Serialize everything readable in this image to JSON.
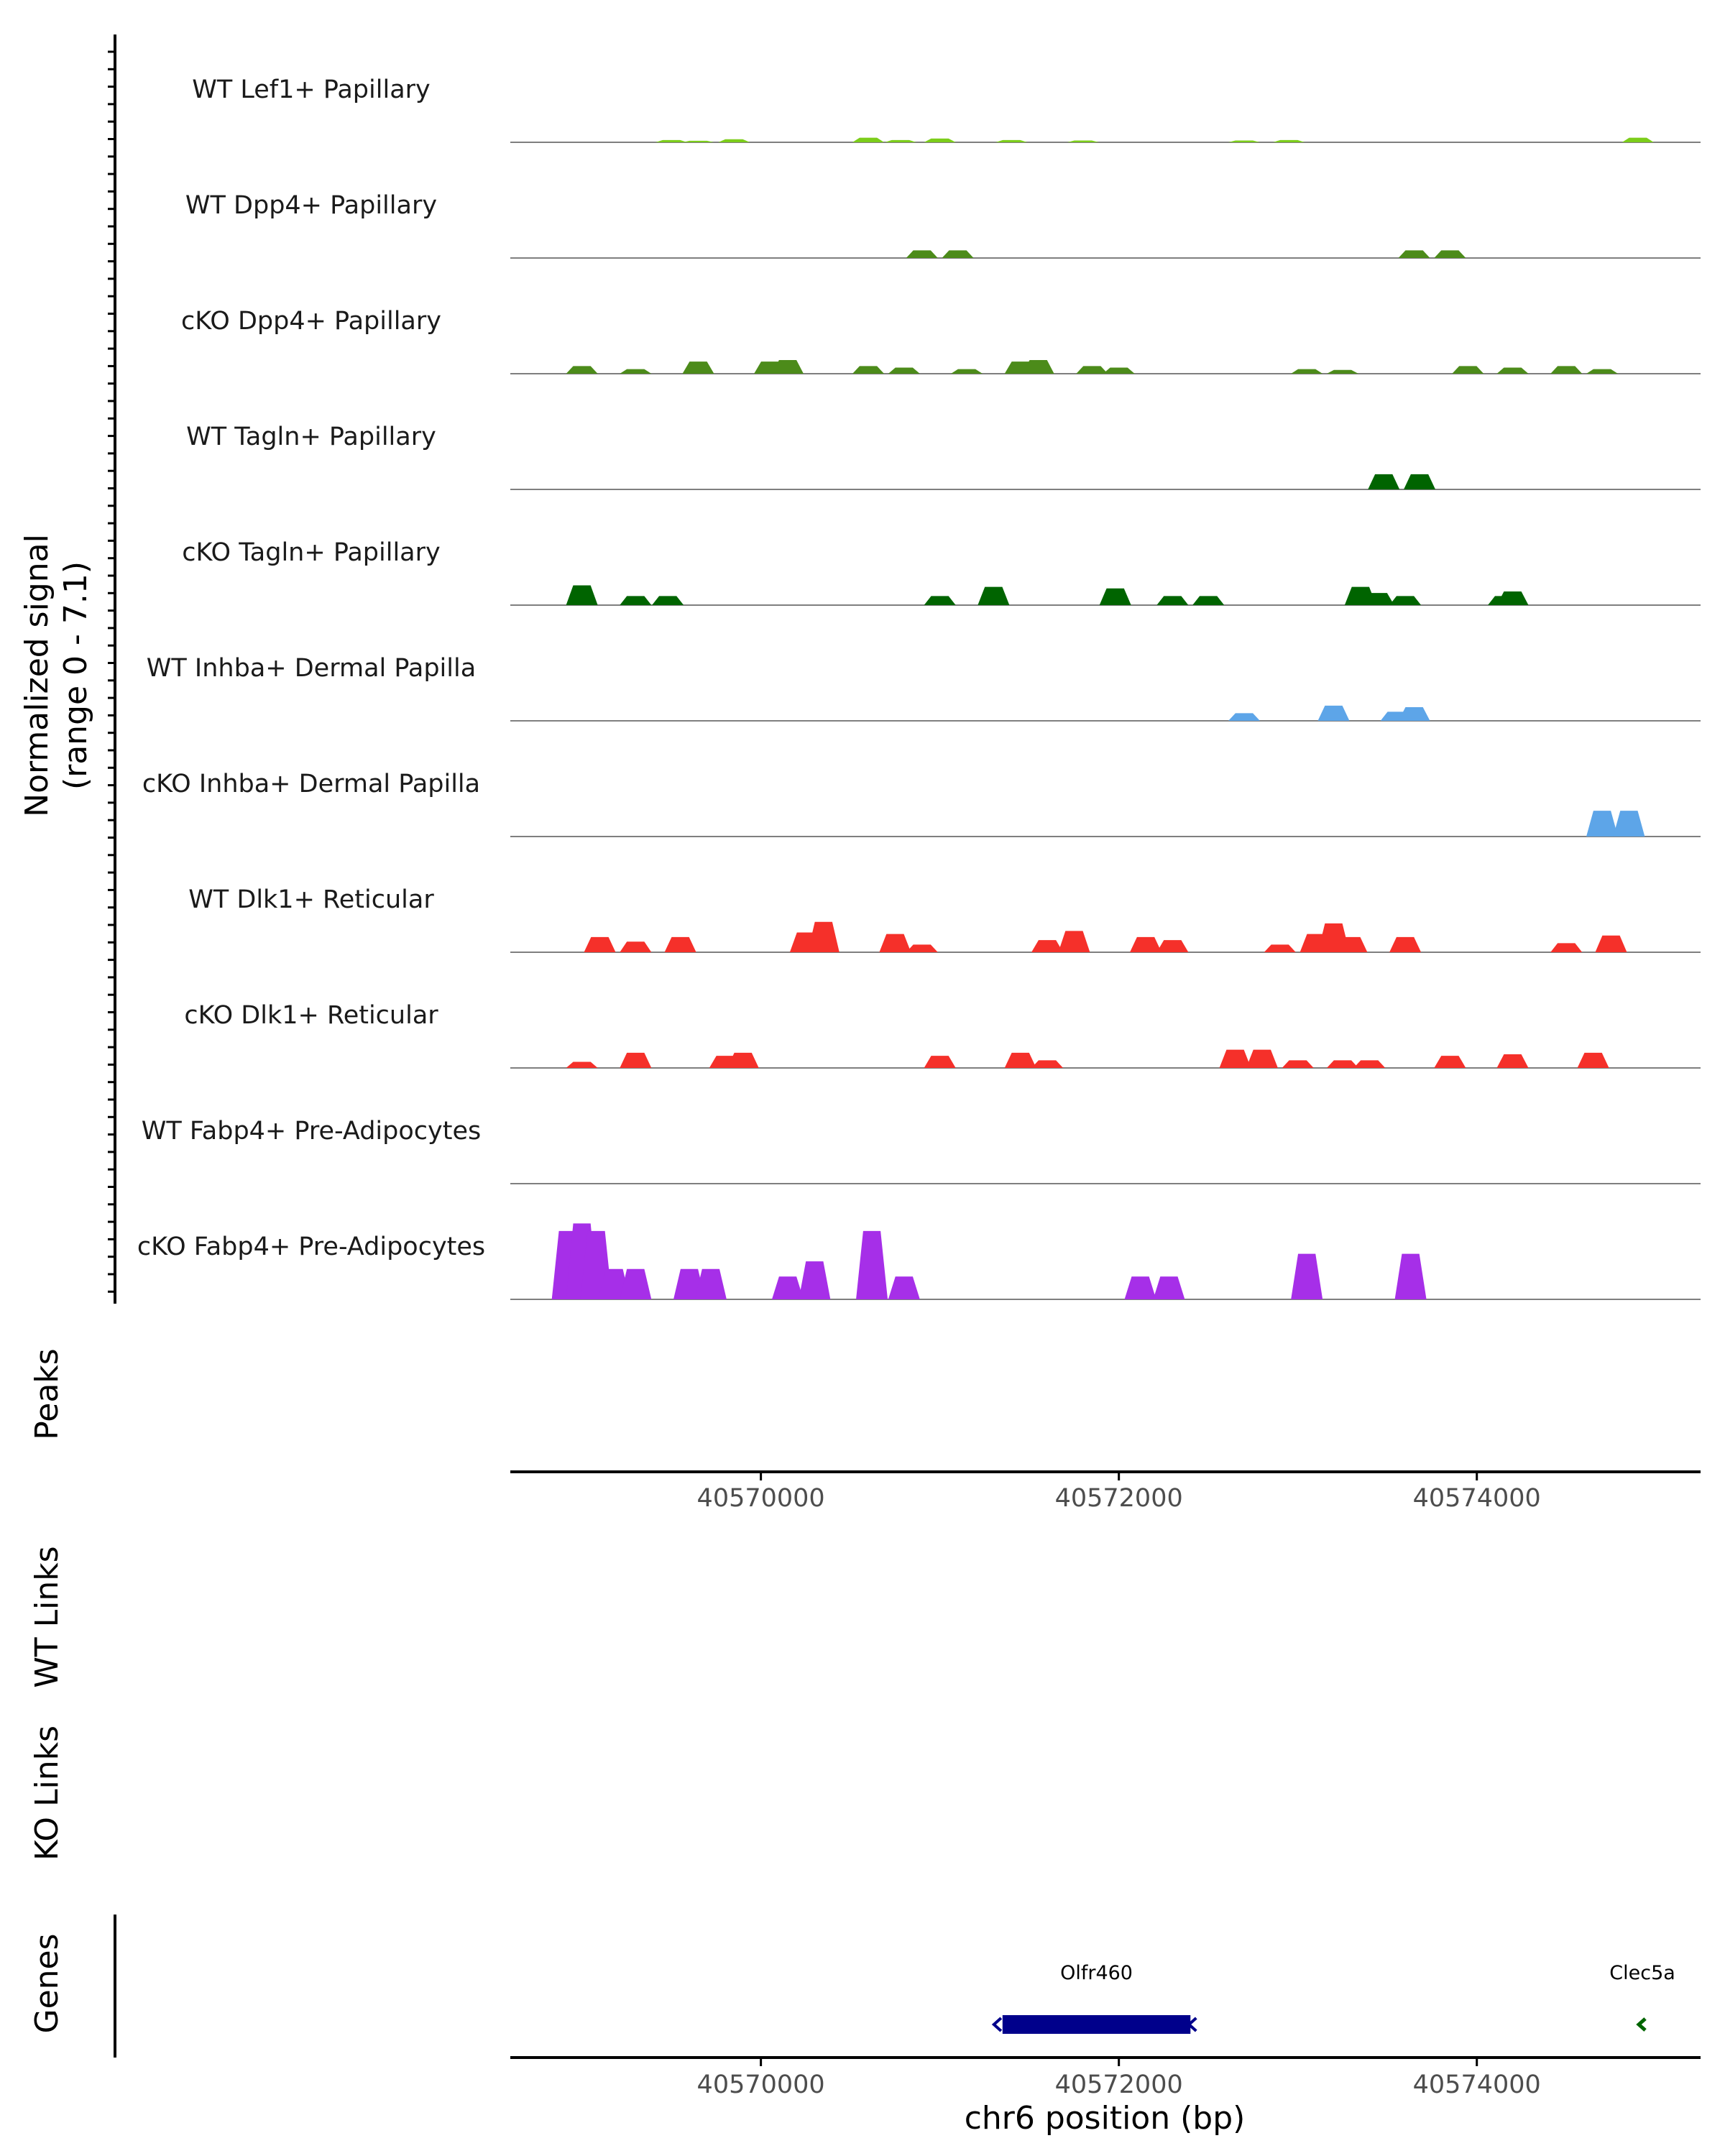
{
  "chart_data": {
    "type": "area",
    "title": "",
    "xlabel": "chr6 position (bp)",
    "region": {
      "chrom": "chr6",
      "start": 40568600,
      "end": 40575250
    },
    "x_ticks": [
      40570000,
      40572000,
      40574000
    ],
    "x_tick_labels": [
      "40570000",
      "40572000",
      "40574000"
    ],
    "coverage": {
      "ylabel_line1": "Normalized signal",
      "ylabel_line2": "(range 0 - 7.1)",
      "ylim": [
        0,
        7.1
      ],
      "tracks": [
        {
          "name": "WT Lef1+ Papillary",
          "color": "#7CCD1A",
          "peaks": [
            [
              40569500,
              0.15
            ],
            [
              40569650,
              0.1
            ],
            [
              40569850,
              0.2
            ],
            [
              40570600,
              0.3
            ],
            [
              40570780,
              0.15
            ],
            [
              40571000,
              0.25
            ],
            [
              40571400,
              0.15
            ],
            [
              40571800,
              0.12
            ],
            [
              40572700,
              0.12
            ],
            [
              40572950,
              0.15
            ],
            [
              40574900,
              0.3
            ]
          ]
        },
        {
          "name": "WT Dpp4+ Papillary",
          "color": "#4C8B1A",
          "peaks": [
            [
              40570900,
              0.5
            ],
            [
              40571100,
              0.5
            ],
            [
              40573650,
              0.5
            ],
            [
              40573850,
              0.5
            ]
          ]
        },
        {
          "name": "cKO Dpp4+ Papillary",
          "color": "#4C8B1A",
          "peaks": [
            [
              40569000,
              0.5
            ],
            [
              40569300,
              0.3
            ],
            [
              40569650,
              0.8
            ],
            [
              40570050,
              0.8
            ],
            [
              40570150,
              0.9
            ],
            [
              40570600,
              0.5
            ],
            [
              40570800,
              0.4
            ],
            [
              40571150,
              0.3
            ],
            [
              40571450,
              0.8
            ],
            [
              40571550,
              0.9
            ],
            [
              40571850,
              0.5
            ],
            [
              40572000,
              0.4
            ],
            [
              40573050,
              0.3
            ],
            [
              40573250,
              0.25
            ],
            [
              40573950,
              0.5
            ],
            [
              40574200,
              0.4
            ],
            [
              40574500,
              0.5
            ],
            [
              40574700,
              0.3
            ]
          ]
        },
        {
          "name": "WT Tagln+ Papillary",
          "color": "#006400",
          "peaks": [
            [
              40573480,
              1.0
            ],
            [
              40573680,
              1.0
            ]
          ]
        },
        {
          "name": "cKO Tagln+ Papillary",
          "color": "#006400",
          "peaks": [
            [
              40569000,
              1.3
            ],
            [
              40569300,
              0.6
            ],
            [
              40569480,
              0.6
            ],
            [
              40571000,
              0.6
            ],
            [
              40571300,
              1.2
            ],
            [
              40571980,
              1.1
            ],
            [
              40572300,
              0.6
            ],
            [
              40572500,
              0.6
            ],
            [
              40573350,
              1.2
            ],
            [
              40573450,
              0.8
            ],
            [
              40573600,
              0.6
            ],
            [
              40574150,
              0.6
            ],
            [
              40574200,
              0.9
            ]
          ]
        },
        {
          "name": "WT Inhba+ Dermal Papilla",
          "color": "#5DA5E8",
          "peaks": [
            [
              40572700,
              0.5
            ],
            [
              40573200,
              1.0
            ],
            [
              40573550,
              0.6
            ],
            [
              40573650,
              0.9
            ]
          ]
        },
        {
          "name": "cKO Inhba+ Dermal Papilla",
          "color": "#5DA5E8",
          "peaks": [
            [
              40574700,
              1.7
            ],
            [
              40574850,
              1.7
            ]
          ]
        },
        {
          "name": "WT Dlk1+ Reticular",
          "color": "#F5302A",
          "peaks": [
            [
              40569100,
              1.0
            ],
            [
              40569300,
              0.7
            ],
            [
              40569550,
              1.0
            ],
            [
              40570250,
              1.3
            ],
            [
              40570350,
              2.0
            ],
            [
              40570750,
              1.2
            ],
            [
              40570900,
              0.5
            ],
            [
              40571600,
              0.8
            ],
            [
              40571750,
              1.4
            ],
            [
              40572150,
              1.0
            ],
            [
              40572300,
              0.8
            ],
            [
              40572900,
              0.5
            ],
            [
              40573100,
              1.2
            ],
            [
              40573200,
              1.9
            ],
            [
              40573300,
              1.0
            ],
            [
              40573600,
              1.0
            ],
            [
              40574500,
              0.6
            ],
            [
              40574750,
              1.1
            ]
          ]
        },
        {
          "name": "cKO Dlk1+ Reticular",
          "color": "#F5302A",
          "peaks": [
            [
              40569000,
              0.4
            ],
            [
              40569300,
              1.0
            ],
            [
              40569800,
              0.8
            ],
            [
              40569900,
              1.0
            ],
            [
              40571000,
              0.8
            ],
            [
              40571450,
              1.0
            ],
            [
              40571600,
              0.5
            ],
            [
              40572650,
              1.2
            ],
            [
              40572800,
              1.2
            ],
            [
              40573000,
              0.5
            ],
            [
              40573250,
              0.5
            ],
            [
              40573400,
              0.5
            ],
            [
              40573850,
              0.8
            ],
            [
              40574200,
              0.9
            ],
            [
              40574650,
              1.0
            ]
          ]
        },
        {
          "name": "WT Fabp4+ Pre-Adipocytes",
          "color": "#A62FE8",
          "peaks": []
        },
        {
          "name": "cKO Fabp4+ Pre-Adipocytes",
          "color": "#A62FE8",
          "peaks": [
            [
              40568920,
              4.5
            ],
            [
              40569000,
              5.0
            ],
            [
              40569080,
              4.5
            ],
            [
              40569180,
              2.0
            ],
            [
              40569300,
              2.0
            ],
            [
              40569600,
              2.0
            ],
            [
              40569720,
              2.0
            ],
            [
              40570150,
              1.5
            ],
            [
              40570300,
              2.5
            ],
            [
              40570620,
              4.5
            ],
            [
              40570800,
              1.5
            ],
            [
              40572120,
              1.5
            ],
            [
              40572280,
              1.5
            ],
            [
              40573050,
              3.0
            ],
            [
              40573630,
              3.0
            ]
          ]
        }
      ]
    },
    "annotation_tracks": [
      {
        "label": "Peaks",
        "items": []
      },
      {
        "label": "WT Links",
        "items": []
      },
      {
        "label": "KO Links",
        "items": []
      }
    ],
    "genes_track": {
      "label": "Genes",
      "genes": [
        {
          "name": "Olfr460",
          "start": 40571350,
          "end": 40572400,
          "strand": "-",
          "color": "#00008B"
        },
        {
          "name": "Clec5a",
          "start": 40574900,
          "end": 40574950,
          "strand": "-",
          "color": "#006400"
        }
      ]
    }
  }
}
